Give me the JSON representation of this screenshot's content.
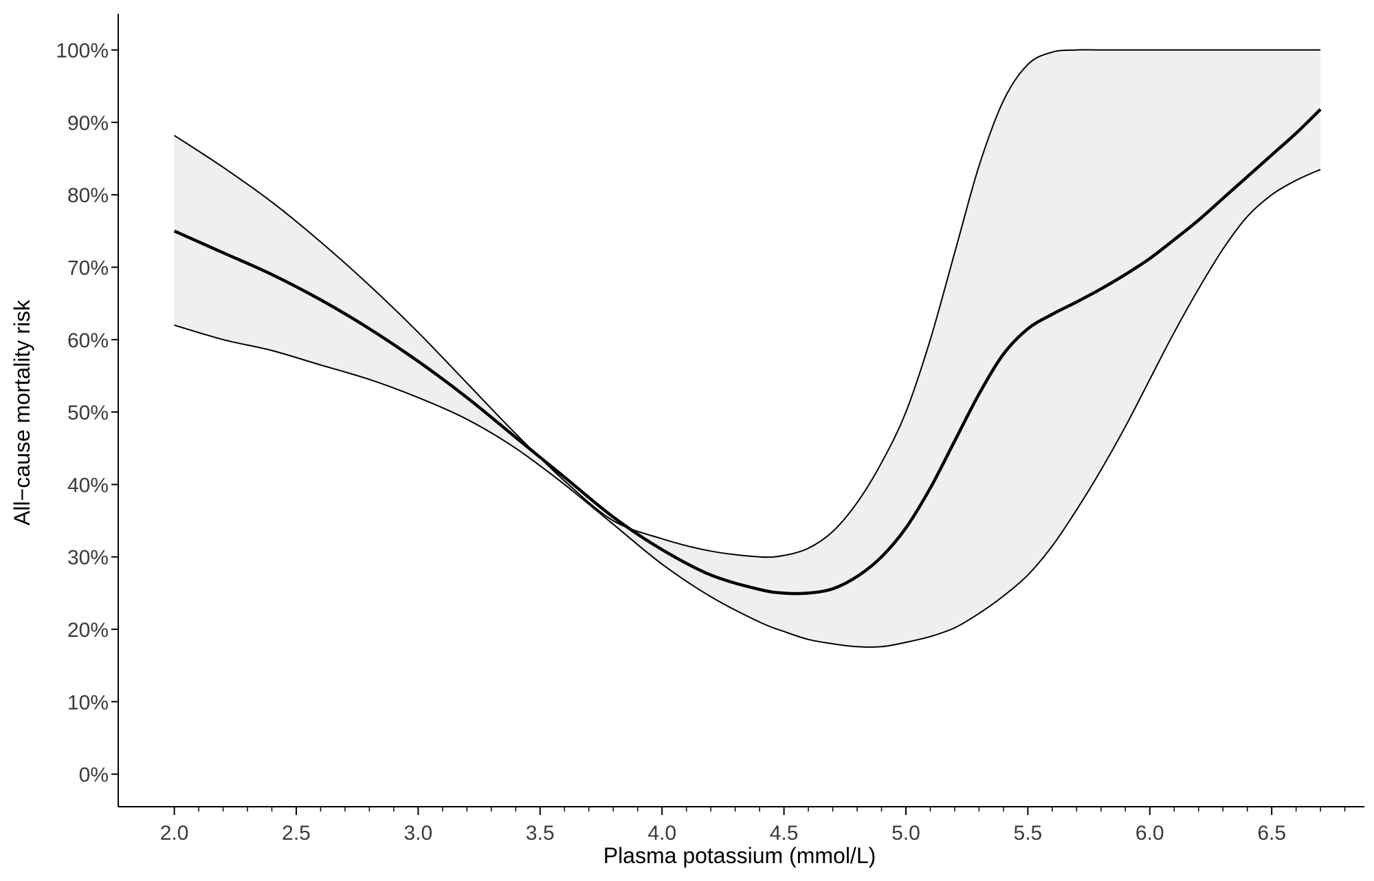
{
  "chart_data": {
    "type": "line",
    "title": "",
    "xlabel": "Plasma potassium (mmol/L)",
    "ylabel": "All−cause mortality risk",
    "xlim": [
      1.77,
      6.88
    ],
    "ylim": [
      -0.045,
      1.05
    ],
    "x_ticks": [
      2.0,
      2.5,
      3.0,
      3.5,
      4.0,
      4.5,
      5.0,
      5.5,
      6.0,
      6.5
    ],
    "x_tick_labels": [
      "2.0",
      "2.5",
      "3.0",
      "3.5",
      "4.0",
      "4.5",
      "5.0",
      "5.5",
      "6.0",
      "6.5"
    ],
    "x_minor_tick_step": 0.1,
    "y_ticks": [
      0,
      0.1,
      0.2,
      0.3,
      0.4,
      0.5,
      0.6,
      0.7,
      0.8,
      0.9,
      1.0
    ],
    "y_tick_labels": [
      "0%",
      "10%",
      "20%",
      "30%",
      "40%",
      "50%",
      "60%",
      "70%",
      "80%",
      "90%",
      "100%"
    ],
    "grid": false,
    "legend": "none",
    "colors": {
      "line": "#000000",
      "band_fill": "#efefef",
      "band_edge": "#000000",
      "tick_text": "#3a3a3a"
    },
    "x": [
      2.0,
      2.2,
      2.4,
      2.6,
      2.8,
      3.0,
      3.2,
      3.4,
      3.6,
      3.8,
      4.0,
      4.2,
      4.4,
      4.5,
      4.6,
      4.7,
      4.8,
      4.9,
      5.0,
      5.1,
      5.2,
      5.3,
      5.4,
      5.5,
      5.6,
      5.7,
      5.8,
      5.9,
      6.0,
      6.1,
      6.2,
      6.3,
      6.4,
      6.5,
      6.6,
      6.7
    ],
    "series": [
      {
        "role": "estimate",
        "values": [
          0.75,
          0.72,
          0.69,
          0.655,
          0.615,
          0.57,
          0.52,
          0.465,
          0.41,
          0.355,
          0.31,
          0.275,
          0.255,
          0.25,
          0.25,
          0.256,
          0.273,
          0.3,
          0.34,
          0.395,
          0.46,
          0.525,
          0.58,
          0.615,
          0.635,
          0.652,
          0.67,
          0.69,
          0.712,
          0.738,
          0.765,
          0.795,
          0.825,
          0.855,
          0.885,
          0.918
        ]
      },
      {
        "role": "upper_ci",
        "values": [
          0.882,
          0.838,
          0.79,
          0.735,
          0.675,
          0.61,
          0.54,
          0.47,
          0.405,
          0.35,
          0.325,
          0.308,
          0.3,
          0.302,
          0.312,
          0.335,
          0.375,
          0.43,
          0.5,
          0.6,
          0.72,
          0.84,
          0.93,
          0.98,
          0.997,
          1.0,
          1.0,
          1.0,
          1.0,
          1.0,
          1.0,
          1.0,
          1.0,
          1.0,
          1.0,
          1.0
        ]
      },
      {
        "role": "lower_ci",
        "values": [
          0.62,
          0.6,
          0.585,
          0.565,
          0.545,
          0.52,
          0.49,
          0.45,
          0.4,
          0.345,
          0.29,
          0.245,
          0.21,
          0.197,
          0.186,
          0.18,
          0.176,
          0.176,
          0.182,
          0.19,
          0.202,
          0.222,
          0.246,
          0.275,
          0.315,
          0.365,
          0.42,
          0.48,
          0.545,
          0.61,
          0.67,
          0.725,
          0.77,
          0.8,
          0.82,
          0.835
        ]
      }
    ]
  }
}
